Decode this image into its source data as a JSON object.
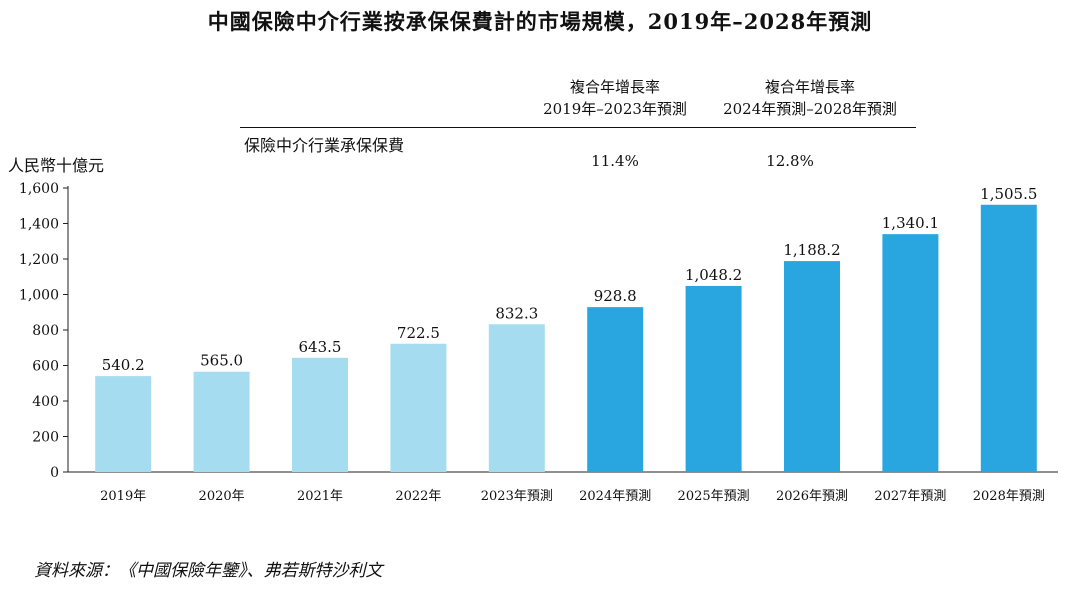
{
  "chart_data": {
    "type": "bar",
    "title": "中國保險中介行業按承保保費計的市場規模，2019年–2028年預測",
    "ylabel": "人民幣十億元",
    "ylim": [
      0,
      1600
    ],
    "yticks": [
      "0",
      "200",
      "400",
      "600",
      "800",
      "1,000",
      "1,200",
      "1,400",
      "1,600"
    ],
    "ytick_values": [
      0,
      200,
      400,
      600,
      800,
      1000,
      1200,
      1400,
      1600
    ],
    "categories": [
      "2019年",
      "2020年",
      "2021年",
      "2022年",
      "2023年預測",
      "2024年預測",
      "2025年預測",
      "2026年預測",
      "2027年預測",
      "2028年預測"
    ],
    "values": [
      540.2,
      565.0,
      643.5,
      722.5,
      832.3,
      928.8,
      1048.2,
      1188.2,
      1340.1,
      1505.5
    ],
    "value_labels": [
      "540.2",
      "565.0",
      "643.5",
      "722.5",
      "832.3",
      "928.8",
      "1,048.2",
      "1,188.2",
      "1,340.1",
      "1,505.5"
    ],
    "series_name": "保險中介行業承保保費",
    "colors": {
      "historical": "#a6dcef",
      "forecast": "#29a6e0"
    },
    "forecast_start_index": 5,
    "cagr": [
      {
        "header_line1": "複合年增長率",
        "header_line2": "2019年–2023年預測",
        "value": "11.4%"
      },
      {
        "header_line1": "複合年增長率",
        "header_line2": "2024年預測–2028年預測",
        "value": "12.8%"
      }
    ]
  },
  "source": "資料來源：《中國保險年鑒》、弗若斯特沙利文"
}
